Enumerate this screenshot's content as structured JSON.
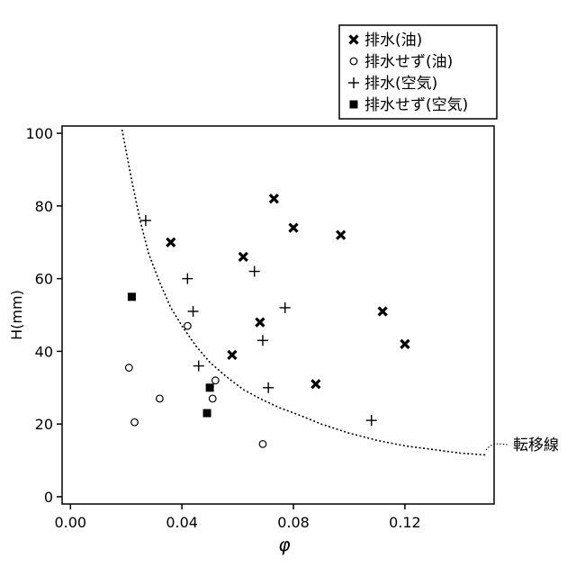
{
  "chart_data": {
    "type": "scatter",
    "xlabel": "φ",
    "ylabel": "H(mm)",
    "xlim": [
      -0.003,
      0.152
    ],
    "ylim": [
      -2,
      102
    ],
    "x_ticks": [
      0.0,
      0.04,
      0.08,
      0.12
    ],
    "x_tick_labels": [
      "0.00",
      "0.04",
      "0.08",
      "0.12"
    ],
    "y_ticks": [
      0,
      20,
      40,
      60,
      80,
      100
    ],
    "y_tick_labels": [
      "0",
      "20",
      "40",
      "60",
      "80",
      "100"
    ],
    "grid": false,
    "legend_position": "top-right, outside plot",
    "series": [
      {
        "name": "排水(油)",
        "marker": "x-bold",
        "points": [
          [
            0.036,
            70
          ],
          [
            0.058,
            39
          ],
          [
            0.062,
            66
          ],
          [
            0.068,
            48
          ],
          [
            0.073,
            82
          ],
          [
            0.08,
            74
          ],
          [
            0.088,
            31
          ],
          [
            0.097,
            72
          ],
          [
            0.112,
            51
          ],
          [
            0.12,
            42
          ]
        ]
      },
      {
        "name": "排水せず(油)",
        "marker": "circle-open",
        "points": [
          [
            0.021,
            35.5
          ],
          [
            0.023,
            20.5
          ],
          [
            0.032,
            27
          ],
          [
            0.042,
            47
          ],
          [
            0.051,
            27
          ],
          [
            0.052,
            32
          ],
          [
            0.069,
            14.5
          ]
        ]
      },
      {
        "name": "排水(空気)",
        "marker": "plus",
        "points": [
          [
            0.027,
            76
          ],
          [
            0.042,
            60
          ],
          [
            0.044,
            51
          ],
          [
            0.046,
            36
          ],
          [
            0.066,
            62
          ],
          [
            0.069,
            43
          ],
          [
            0.071,
            30
          ],
          [
            0.077,
            52
          ],
          [
            0.108,
            21
          ]
        ]
      },
      {
        "name": "排水せず(空気)",
        "marker": "square-filled",
        "points": [
          [
            0.022,
            55
          ],
          [
            0.049,
            23
          ],
          [
            0.05,
            30
          ]
        ]
      }
    ],
    "curve": {
      "label": "転移線",
      "style": "dotted",
      "points": [
        [
          0.0185,
          101
        ],
        [
          0.02,
          95
        ],
        [
          0.022,
          87
        ],
        [
          0.025,
          76
        ],
        [
          0.028,
          67
        ],
        [
          0.032,
          59
        ],
        [
          0.036,
          52
        ],
        [
          0.04,
          47
        ],
        [
          0.045,
          41.5
        ],
        [
          0.05,
          37
        ],
        [
          0.056,
          33
        ],
        [
          0.062,
          29.5
        ],
        [
          0.068,
          27
        ],
        [
          0.075,
          24.5
        ],
        [
          0.082,
          22.5
        ],
        [
          0.09,
          20
        ],
        [
          0.1,
          17.5
        ],
        [
          0.11,
          15.5
        ],
        [
          0.12,
          14
        ],
        [
          0.13,
          13
        ],
        [
          0.14,
          12
        ],
        [
          0.149,
          11.5
        ]
      ]
    }
  }
}
